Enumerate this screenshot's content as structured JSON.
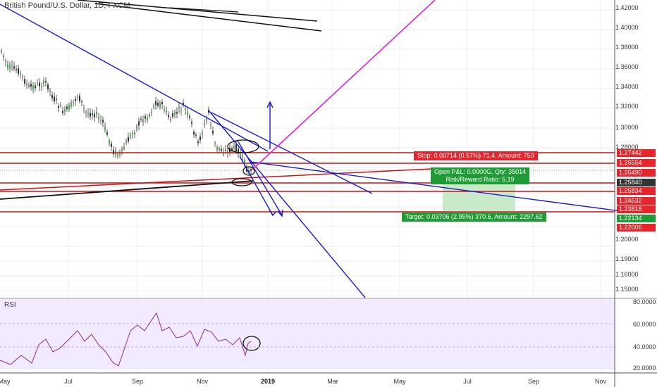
{
  "symbol": {
    "title": "British Pound/U.S. Dollar, 1D, FXCM"
  },
  "rsi": {
    "label": "RSI",
    "ticks": [
      "80.0000",
      "60.0000",
      "40.0000",
      "20.0000"
    ]
  },
  "price_axis": {
    "ticks": [
      "1.42000",
      "1.40000",
      "1.38000",
      "1.36000",
      "1.34000",
      "1.32000",
      "1.30000",
      "1.28000",
      "1.26000",
      "1.24000",
      "1.20000",
      "1.19000",
      "1.18000",
      "1.16000",
      "1.15000"
    ],
    "badges": [
      {
        "value": "1.27442",
        "color": "#e8242c"
      },
      {
        "value": "1.26554",
        "color": "#e8242c"
      },
      {
        "value": "1.26490",
        "color": "#e8242c"
      },
      {
        "value": "1.25840",
        "color": "#333333"
      },
      {
        "value": "1.25834",
        "color": "#e8242c"
      },
      {
        "value": "1.24632",
        "color": "#e8242c"
      },
      {
        "value": "1.23818",
        "color": "#e8242c"
      },
      {
        "value": "1.22134",
        "color": "#1e9b34"
      },
      {
        "value": "1.22006",
        "color": "#e8242c"
      }
    ]
  },
  "time_axis": {
    "ticks": [
      {
        "label": "May",
        "bold": false
      },
      {
        "label": "Jul",
        "bold": false
      },
      {
        "label": "Sep",
        "bold": false
      },
      {
        "label": "Nov",
        "bold": false
      },
      {
        "label": "2019",
        "bold": true
      },
      {
        "label": "Mar",
        "bold": false
      },
      {
        "label": "May",
        "bold": false
      },
      {
        "label": "Jul",
        "bold": false
      },
      {
        "label": "Sep",
        "bold": false
      },
      {
        "label": "Nov",
        "bold": false
      }
    ]
  },
  "position": {
    "stop": "Stop: 0.00714 (0.57%) 71.4, Amount: 750",
    "pnl_line1": "Open P&L: 0.0000G, Qty: 35014",
    "pnl_line2": "Risk/Reward Ratio: 5.19",
    "target": "Target: 0.03706 (2.95%) 370.6, Amount: 2297.62"
  },
  "colors": {
    "up_candle": "#4caf50",
    "down_candle": "#333333",
    "trendline": "#1a1acc",
    "horizontal": "#cc1111",
    "magenta": "#e020e0",
    "rsi_bg": "#efe6ff",
    "rsi_line": "#8a2a9a"
  }
}
